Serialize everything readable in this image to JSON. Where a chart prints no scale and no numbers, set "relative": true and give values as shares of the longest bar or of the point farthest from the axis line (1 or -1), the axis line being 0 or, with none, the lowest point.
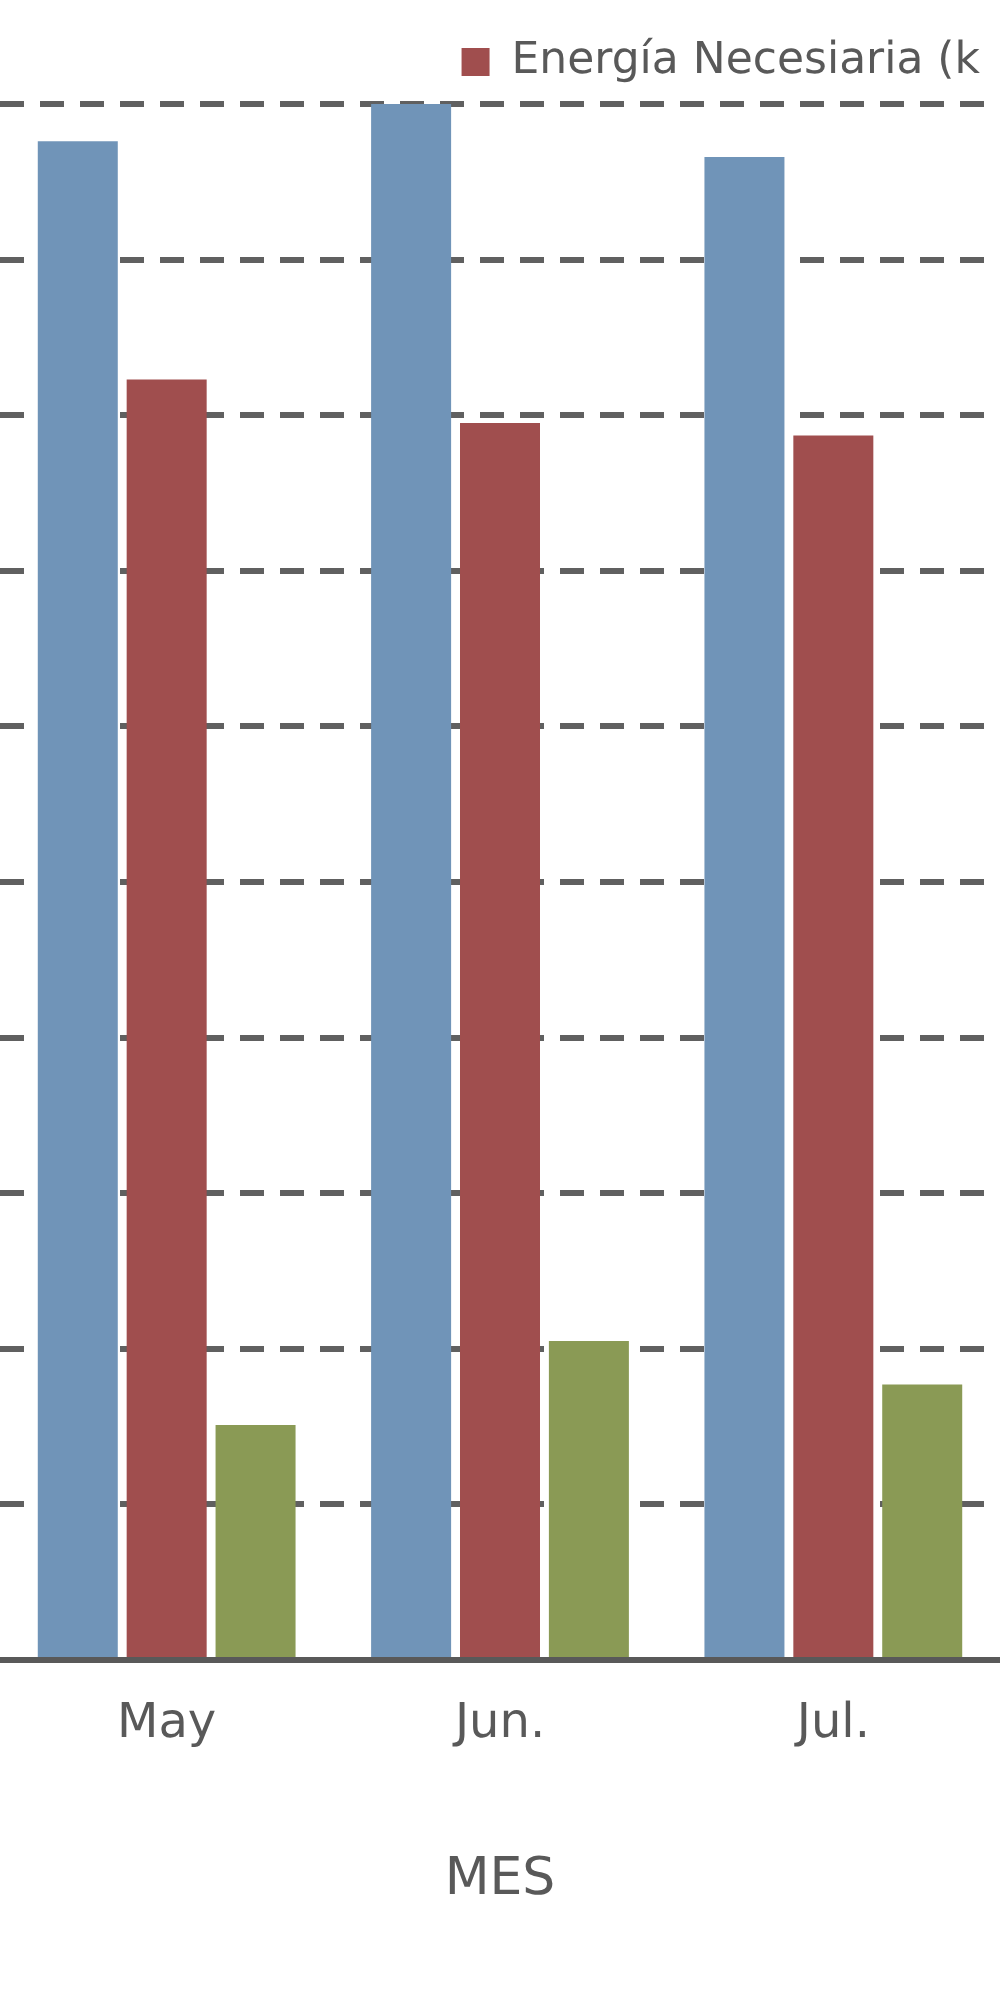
{
  "chart_data": {
    "type": "bar",
    "relative": true,
    "xlabel": "MES",
    "categories": [
      "May",
      "Jun.",
      "Jul."
    ],
    "series": [
      {
        "color": "#7094b8",
        "values": [
          0.976,
          1,
          0.966
        ]
      },
      {
        "name": "Energía Necesiaria (k",
        "color": "#a04e4e",
        "values": [
          0.823,
          0.795,
          0.787
        ]
      },
      {
        "color": "#8a9a55",
        "values": [
          0.151,
          0.205,
          0.177
        ]
      }
    ],
    "grid": "y",
    "legend": "top right"
  }
}
